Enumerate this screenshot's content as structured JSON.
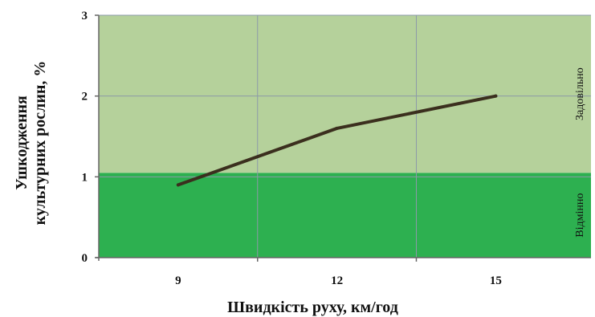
{
  "chart_data": {
    "type": "line",
    "xlabel": "Швидкість руху, км/год",
    "ylabel_lines": [
      "Ушкодження",
      "культурних рослин, %"
    ],
    "categories": [
      "9",
      "12",
      "15"
    ],
    "x": [
      9,
      12,
      15
    ],
    "series": [
      {
        "values": [
          0.9,
          1.6,
          2.0
        ],
        "color": "#3b2f1e"
      }
    ],
    "xlim": [
      7.5,
      16.8
    ],
    "ylim": [
      0,
      3
    ],
    "yticks": [
      0,
      1,
      2,
      3
    ],
    "grid": true,
    "bands": [
      {
        "label": "Відмінно",
        "from": 0,
        "to": 1.05,
        "color": "#2db050"
      },
      {
        "label": "Задовільно",
        "from": 1.05,
        "to": 3,
        "color": "#b5d19b"
      }
    ]
  }
}
